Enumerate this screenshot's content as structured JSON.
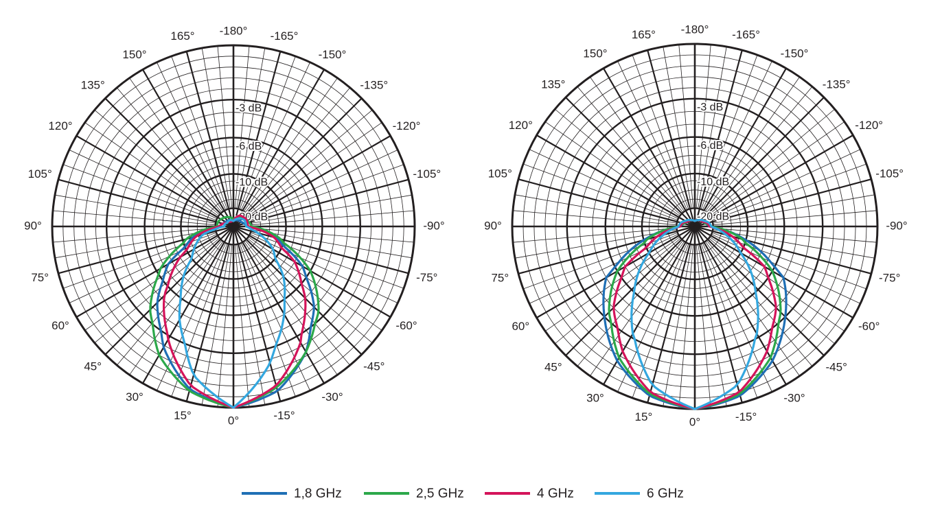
{
  "chart_data": [
    {
      "type": "polar",
      "angle_ticks": [
        "0°",
        "15°",
        "30°",
        "45°",
        "60°",
        "75°",
        "90°",
        "105°",
        "120°",
        "135°",
        "150°",
        "165°",
        "-180°",
        "-165°",
        "-150°",
        "-135°",
        "-120°",
        "-105°",
        "-90°",
        "-75°",
        "-60°",
        "-45°",
        "-30°",
        "-15°"
      ],
      "angle_tick_values": [
        0,
        15,
        30,
        45,
        60,
        75,
        90,
        105,
        120,
        135,
        150,
        165,
        180,
        -165,
        -150,
        -135,
        -120,
        -105,
        -90,
        -75,
        -60,
        -45,
        -30,
        -15
      ],
      "radial_ticks": [
        {
          "label": "-3 dB",
          "value": -3
        },
        {
          "label": "-6 dB",
          "value": -6
        },
        {
          "label": "-10 dB",
          "value": -10
        },
        {
          "label": "-20 dB",
          "value": -20
        }
      ],
      "angle_unit": "deg",
      "series": [
        {
          "name": "1,8 GHz",
          "color": "#1f6fb5",
          "angles": [
            -180,
            -150,
            -120,
            -105,
            -90,
            -75,
            -60,
            -45,
            -30,
            -15,
            0,
            15,
            30,
            45,
            60,
            75,
            90,
            105,
            120,
            150,
            180
          ],
          "db": [
            -27,
            -26,
            -25,
            -24,
            -22,
            -12,
            -7,
            -4,
            -2,
            -0.6,
            0,
            -0.7,
            -2.3,
            -4.5,
            -7.5,
            -13,
            -22,
            -24,
            -25,
            -26,
            -27
          ]
        },
        {
          "name": "2,5 GHz",
          "color": "#2ca84a",
          "angles": [
            -180,
            -150,
            -120,
            -105,
            -90,
            -75,
            -60,
            -45,
            -30,
            -15,
            0,
            15,
            30,
            45,
            60,
            75,
            90,
            105,
            120,
            150,
            180
          ],
          "db": [
            -26,
            -24,
            -23,
            -21,
            -20,
            -11,
            -6,
            -3.5,
            -2,
            -0.8,
            0,
            -0.6,
            -1.8,
            -3.7,
            -6.5,
            -11,
            -21,
            -21,
            -22,
            -24,
            -26
          ]
        },
        {
          "name": "4 GHz",
          "color": "#d4145a",
          "angles": [
            -180,
            -150,
            -120,
            -105,
            -90,
            -75,
            -60,
            -45,
            -30,
            -15,
            0,
            15,
            30,
            45,
            60,
            75,
            90,
            105,
            120,
            150,
            180
          ],
          "db": [
            -27,
            -23,
            -22,
            -22,
            -22,
            -13,
            -8,
            -5,
            -2.6,
            -0.9,
            0,
            -0.9,
            -2.8,
            -5.3,
            -9,
            -14,
            -22,
            -24,
            -26,
            -27,
            -27
          ]
        },
        {
          "name": "6 GHz",
          "color": "#34a7df",
          "angles": [
            -180,
            -150,
            -120,
            -105,
            -90,
            -75,
            -60,
            -45,
            -30,
            -15,
            0,
            15,
            30,
            45,
            60,
            75,
            90,
            105,
            120,
            150,
            180
          ],
          "db": [
            -27,
            -25,
            -23,
            -23,
            -23,
            -18,
            -12,
            -8,
            -5,
            -2.2,
            0,
            -1.5,
            -4.5,
            -8,
            -12,
            -16,
            -25,
            -25,
            -26,
            -26,
            -27
          ]
        }
      ]
    },
    {
      "type": "polar",
      "angle_ticks": [
        "0°",
        "15°",
        "30°",
        "45°",
        "60°",
        "75°",
        "90°",
        "105°",
        "120°",
        "135°",
        "150°",
        "165°",
        "-180°",
        "-165°",
        "-150°",
        "-135°",
        "-120°",
        "-105°",
        "-90°",
        "-75°",
        "-60°",
        "-45°",
        "-30°",
        "-15°"
      ],
      "angle_tick_values": [
        0,
        15,
        30,
        45,
        60,
        75,
        90,
        105,
        120,
        135,
        150,
        165,
        180,
        -165,
        -150,
        -135,
        -120,
        -105,
        -90,
        -75,
        -60,
        -45,
        -30,
        -15
      ],
      "radial_ticks": [
        {
          "label": "-3 dB",
          "value": -3
        },
        {
          "label": "-6 dB",
          "value": -6
        },
        {
          "label": "-10 dB",
          "value": -10
        },
        {
          "label": "-20 dB",
          "value": -20
        }
      ],
      "angle_unit": "deg",
      "series": [
        {
          "name": "1,8 GHz",
          "color": "#1f6fb5",
          "angles": [
            -180,
            -150,
            -120,
            -105,
            -90,
            -75,
            -60,
            -45,
            -30,
            -15,
            0,
            15,
            30,
            45,
            60,
            75,
            90,
            105,
            120,
            150,
            180
          ],
          "db": [
            -27,
            -26,
            -25,
            -24,
            -22,
            -10,
            -5,
            -3,
            -1.5,
            -0.4,
            0,
            -0.4,
            -1.5,
            -3,
            -5,
            -10,
            -22,
            -24,
            -25,
            -26,
            -27
          ]
        },
        {
          "name": "2,5 GHz",
          "color": "#2ca84a",
          "angles": [
            -180,
            -150,
            -120,
            -105,
            -90,
            -75,
            -60,
            -45,
            -30,
            -15,
            0,
            15,
            30,
            45,
            60,
            75,
            90,
            105,
            120,
            150,
            180
          ],
          "db": [
            -27,
            -26,
            -25,
            -24,
            -21,
            -11,
            -6,
            -3.5,
            -1.7,
            -0.5,
            0,
            -0.5,
            -1.7,
            -3.5,
            -6,
            -11,
            -21,
            -24,
            -25,
            -26,
            -27
          ]
        },
        {
          "name": "4 GHz",
          "color": "#d4145a",
          "angles": [
            -180,
            -150,
            -120,
            -105,
            -90,
            -75,
            -60,
            -45,
            -30,
            -15,
            0,
            15,
            30,
            45,
            60,
            75,
            90,
            105,
            120,
            150,
            180
          ],
          "db": [
            -27,
            -26,
            -25,
            -23,
            -22,
            -14,
            -7,
            -4,
            -2.1,
            -0.6,
            0,
            -0.6,
            -2.1,
            -4,
            -7,
            -14,
            -22,
            -23,
            -25,
            -26,
            -27
          ]
        },
        {
          "name": "6 GHz",
          "color": "#34a7df",
          "angles": [
            -180,
            -150,
            -120,
            -105,
            -90,
            -75,
            -60,
            -45,
            -30,
            -15,
            0,
            15,
            30,
            45,
            60,
            75,
            90,
            105,
            120,
            150,
            180
          ],
          "db": [
            -27,
            -26,
            -24,
            -22,
            -21,
            -16,
            -10,
            -6.5,
            -3.3,
            -1,
            0,
            -1,
            -3.3,
            -6.5,
            -10,
            -16,
            -21,
            -22,
            -24,
            -26,
            -27
          ]
        }
      ]
    }
  ],
  "legend": [
    {
      "label": "1,8 GHz",
      "color": "#1f6fb5"
    },
    {
      "label": "2,5 GHz",
      "color": "#2ca84a"
    },
    {
      "label": "4 GHz",
      "color": "#d4145a"
    },
    {
      "label": "6 GHz",
      "color": "#34a7df"
    }
  ],
  "grid_color": "#231f20"
}
